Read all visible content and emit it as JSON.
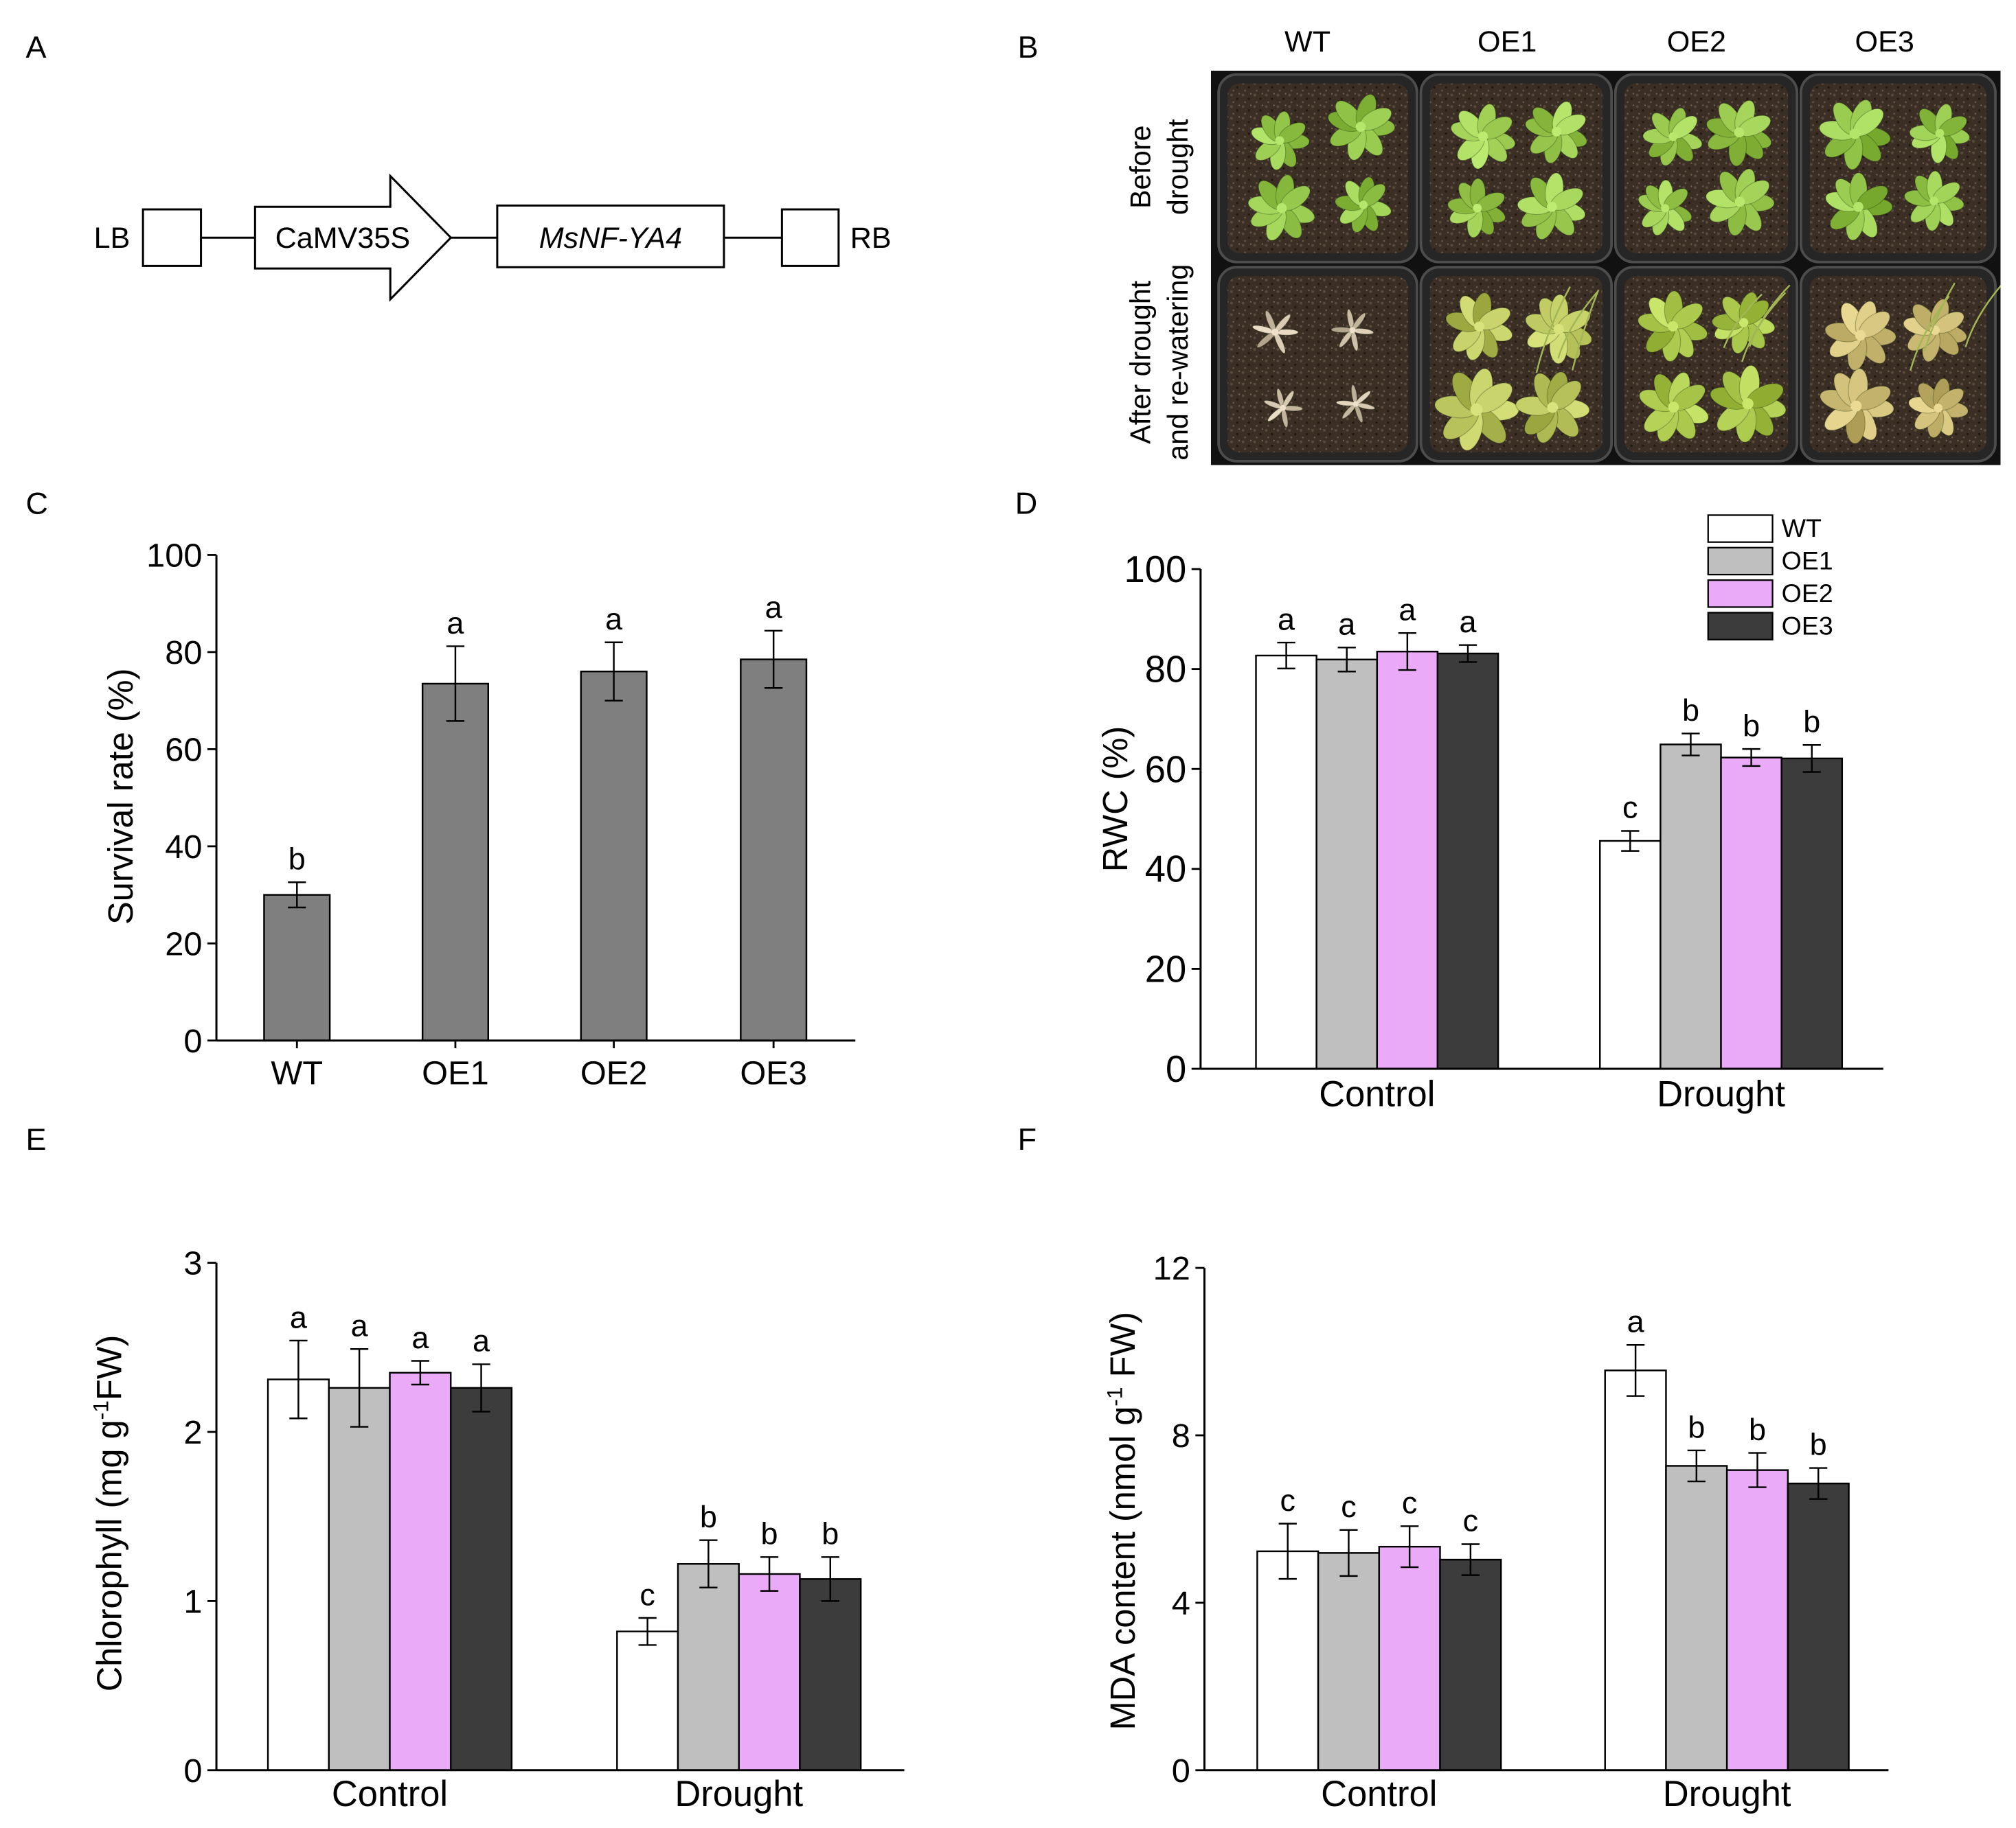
{
  "panel_labels": {
    "A": "A",
    "B": "B",
    "C": "C",
    "D": "D",
    "E": "E",
    "F": "F"
  },
  "construct": {
    "left_border": "LB",
    "promoter": "CaMV35S",
    "gene": "MsNF-YA4",
    "right_border": "RB"
  },
  "photo": {
    "columns": [
      "WT",
      "OE1",
      "OE2",
      "OE3"
    ],
    "rows": [
      {
        "line1": "Before",
        "line2": "drought"
      },
      {
        "line1": "After drought",
        "line2": "and re-watering"
      }
    ]
  },
  "chart_data": [
    {
      "panel": "C",
      "type": "bar",
      "title": "",
      "categories": [
        "WT",
        "OE1",
        "OE2",
        "OE3"
      ],
      "values": [
        30,
        73.5,
        76,
        78.5
      ],
      "errors": [
        2.6,
        7.7,
        6.0,
        5.9
      ],
      "letters": [
        "b",
        "a",
        "a",
        "a"
      ],
      "color": "#7f7f7f",
      "xlabel": "",
      "ylabel": "Survival rate (%)",
      "ylim": [
        0,
        100
      ],
      "yticks": [
        0,
        20,
        40,
        60,
        80,
        100
      ],
      "grid": false
    },
    {
      "panel": "D",
      "type": "bar",
      "title": "",
      "categories": [
        "Control",
        "Drought"
      ],
      "series": [
        {
          "name": "WT",
          "values": [
            82.7,
            45.6
          ],
          "errors": [
            2.6,
            2.0
          ],
          "letters": [
            "a",
            "c"
          ],
          "color": "#ffffff"
        },
        {
          "name": "OE1",
          "values": [
            81.9,
            64.9
          ],
          "errors": [
            2.4,
            2.2
          ],
          "letters": [
            "a",
            "b"
          ],
          "color": "#bfbfbf"
        },
        {
          "name": "OE2",
          "values": [
            83.5,
            62.3
          ],
          "errors": [
            3.7,
            1.7
          ],
          "letters": [
            "a",
            "b"
          ],
          "color": "#eaaaf8"
        },
        {
          "name": "OE3",
          "values": [
            83.1,
            62.1
          ],
          "errors": [
            1.7,
            2.7
          ],
          "letters": [
            "a",
            "b"
          ],
          "color": "#3c3c3c"
        }
      ],
      "xlabel": "",
      "ylabel": "RWC (%)",
      "ylim": [
        0,
        100
      ],
      "yticks": [
        0,
        20,
        40,
        60,
        80,
        100
      ],
      "legend": "top-right",
      "grid": false
    },
    {
      "panel": "E",
      "type": "bar",
      "title": "",
      "categories": [
        "Control",
        "Drought"
      ],
      "series": [
        {
          "name": "WT",
          "values": [
            2.31,
            0.82
          ],
          "errors": [
            0.23,
            0.08
          ],
          "letters": [
            "a",
            "c"
          ],
          "color": "#ffffff"
        },
        {
          "name": "OE1",
          "values": [
            2.26,
            1.22
          ],
          "errors": [
            0.23,
            0.14
          ],
          "letters": [
            "a",
            "b"
          ],
          "color": "#bfbfbf"
        },
        {
          "name": "OE2",
          "values": [
            2.35,
            1.16
          ],
          "errors": [
            0.07,
            0.1
          ],
          "letters": [
            "a",
            "b"
          ],
          "color": "#eaaaf8"
        },
        {
          "name": "OE3",
          "values": [
            2.26,
            1.13
          ],
          "errors": [
            0.14,
            0.13
          ],
          "letters": [
            "a",
            "b"
          ],
          "color": "#3c3c3c"
        }
      ],
      "xlabel": "",
      "ylabel": "Chlorophyll (mg g",
      "ylabel_sup": "-1",
      "ylabel_tail": "FW)",
      "ylim": [
        0,
        3
      ],
      "yticks": [
        0,
        1,
        2,
        3
      ],
      "grid": false
    },
    {
      "panel": "F",
      "type": "bar",
      "title": "",
      "categories": [
        "Control",
        "Drought"
      ],
      "series": [
        {
          "name": "WT",
          "values": [
            5.23,
            9.55
          ],
          "errors": [
            0.66,
            0.61
          ],
          "letters": [
            "c",
            "a"
          ],
          "color": "#ffffff"
        },
        {
          "name": "OE1",
          "values": [
            5.19,
            7.27
          ],
          "errors": [
            0.55,
            0.37
          ],
          "letters": [
            "c",
            "b"
          ],
          "color": "#bfbfbf"
        },
        {
          "name": "OE2",
          "values": [
            5.34,
            7.17
          ],
          "errors": [
            0.49,
            0.41
          ],
          "letters": [
            "c",
            "b"
          ],
          "color": "#eaaaf8"
        },
        {
          "name": "OE3",
          "values": [
            5.03,
            6.85
          ],
          "errors": [
            0.37,
            0.37
          ],
          "letters": [
            "c",
            "b"
          ],
          "color": "#3c3c3c"
        }
      ],
      "xlabel": "",
      "ylabel": "MDA content (nmol g",
      "ylabel_sup": "-1",
      "ylabel_tail": " FW)",
      "ylim": [
        0,
        12
      ],
      "yticks": [
        0,
        4,
        8,
        12
      ],
      "grid": false
    }
  ]
}
